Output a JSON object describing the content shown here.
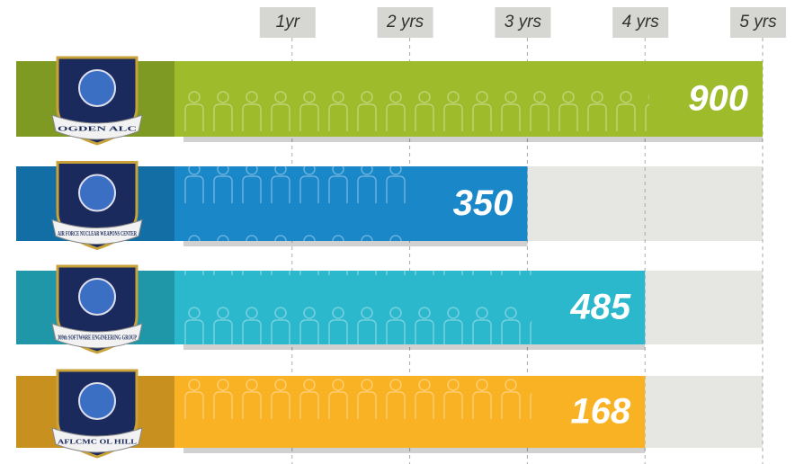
{
  "chart_data": {
    "type": "hbar",
    "categories": [
      "OGDEN ALC",
      "AIR FORCE NUCLEAR WEAPONS CENTER",
      "309th SOFTWARE ENGINEERING GROUP",
      "AFLCMC OL HILL"
    ],
    "values": [
      5,
      3,
      4,
      4
    ],
    "counts": [
      900,
      350,
      485,
      168
    ],
    "colors": [
      "#9dbb2b",
      "#1a87c9",
      "#2bb8cc",
      "#f9b223"
    ],
    "dark_colors": [
      "#7f9a22",
      "#136ea6",
      "#1f97a8",
      "#c8901e"
    ],
    "xlim": [
      0,
      5
    ],
    "xticks": [
      {
        "value": 1,
        "label": "1yr"
      },
      {
        "value": 2,
        "label": "2 yrs"
      },
      {
        "value": 3,
        "label": "3 yrs"
      },
      {
        "value": 4,
        "label": "4 yrs"
      },
      {
        "value": 5,
        "label": "5 yrs"
      }
    ],
    "grid": true
  }
}
